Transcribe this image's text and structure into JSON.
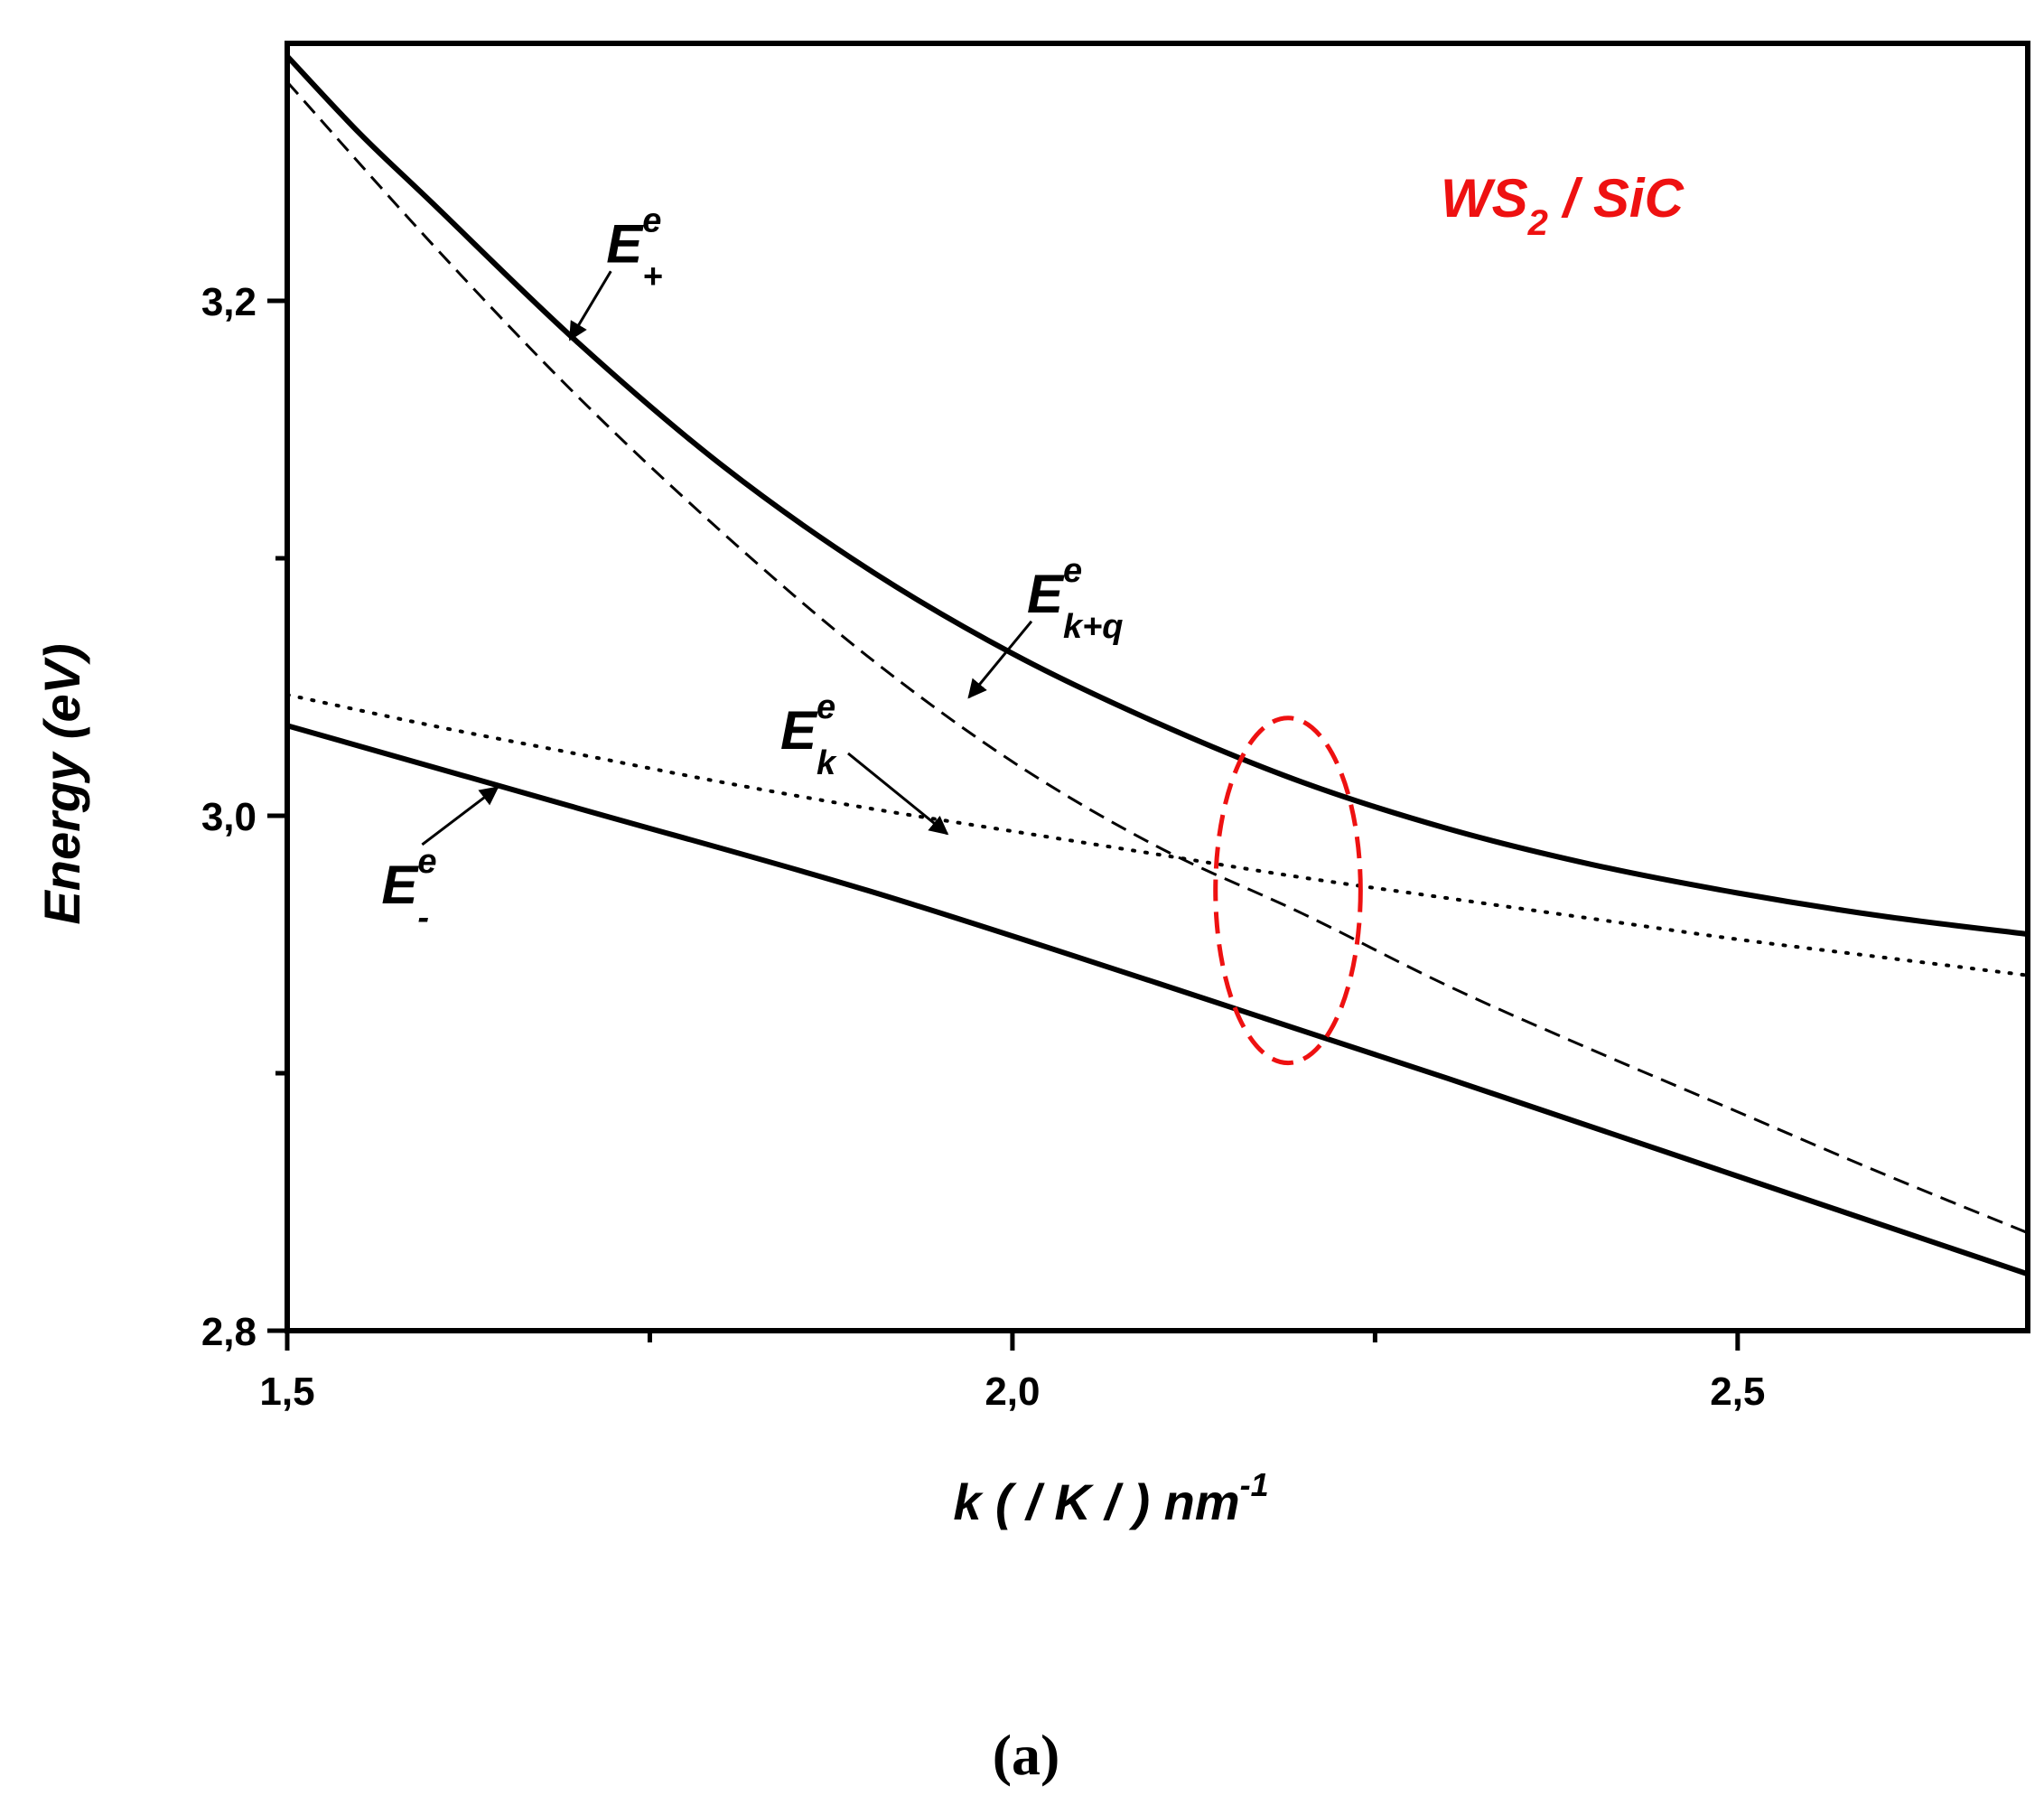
{
  "chart_data": {
    "type": "line",
    "xlabel": "k ( / K / ) nm",
    "xlabel_sup": "-1",
    "ylabel": "Energy (eV)",
    "xlim": [
      1.5,
      2.7
    ],
    "ylim": [
      2.8,
      3.3
    ],
    "x_ticks": [
      {
        "value": 1.5,
        "label": "1,5"
      },
      {
        "value": 2.0,
        "label": "2,0"
      },
      {
        "value": 2.5,
        "label": "2,5"
      }
    ],
    "x_minor_ticks": [
      1.75,
      2.25
    ],
    "y_ticks": [
      {
        "value": 2.8,
        "label": "2,8"
      },
      {
        "value": 3.0,
        "label": "3,0"
      },
      {
        "value": 3.2,
        "label": "3,2"
      }
    ],
    "y_minor_ticks": [
      2.9,
      3.1
    ],
    "grid": false,
    "inset_label": {
      "main": "WS",
      "sub": "2",
      "rest": " / SiC",
      "color": "#ee1111"
    },
    "panel_label": "(a)",
    "highlight_ellipse": {
      "cx": 2.19,
      "cy": 2.971,
      "rx": 0.05,
      "ry": 0.067,
      "color": "#ee1111"
    },
    "series": [
      {
        "key": "E_plus",
        "style": "solid",
        "x": [
          1.5,
          1.55,
          1.6,
          1.7,
          1.8,
          1.9,
          2.0,
          2.1,
          2.2,
          2.3,
          2.4,
          2.5,
          2.6,
          2.7
        ],
        "y": [
          3.295,
          3.265,
          3.238,
          3.184,
          3.136,
          3.096,
          3.063,
          3.036,
          3.013,
          2.995,
          2.981,
          2.97,
          2.961,
          2.954
        ]
      },
      {
        "key": "E_kq",
        "style": "dashed",
        "x": [
          1.5,
          1.6,
          1.7,
          1.8,
          1.9,
          2.0,
          2.1,
          2.2,
          2.3,
          2.4,
          2.5,
          2.6,
          2.7
        ],
        "y": [
          3.285,
          3.222,
          3.163,
          3.11,
          3.062,
          3.021,
          2.988,
          2.962,
          2.934,
          2.909,
          2.885,
          2.861,
          2.838
        ]
      },
      {
        "key": "E_k",
        "style": "dotted",
        "x": [
          1.5,
          1.6,
          1.7,
          1.8,
          1.9,
          2.0,
          2.1,
          2.2,
          2.3,
          2.4,
          2.5,
          2.6,
          2.7
        ],
        "y": [
          3.047,
          3.035,
          3.024,
          3.013,
          3.003,
          2.994,
          2.985,
          2.976,
          2.968,
          2.96,
          2.952,
          2.945,
          2.938
        ]
      },
      {
        "key": "E_minus",
        "style": "solid",
        "x": [
          1.5,
          1.7,
          1.9,
          2.1,
          2.3,
          2.5,
          2.7
        ],
        "y": [
          3.035,
          3.003,
          2.971,
          2.935,
          2.898,
          2.86,
          2.822
        ]
      }
    ],
    "annotations": [
      {
        "key": "E_plus",
        "main": "E",
        "sup": "e",
        "sub": "+",
        "text_x": 1.72,
        "text_y": 3.215,
        "arrow_to_x": 1.695,
        "arrow_to_y": 3.185
      },
      {
        "key": "E_kq",
        "main": "E",
        "sup": "e",
        "sub": "k+q",
        "text_x": 2.01,
        "text_y": 3.079,
        "arrow_to_x": 1.97,
        "arrow_to_y": 3.046
      },
      {
        "key": "E_k",
        "main": "E",
        "sup": "e",
        "sub": "k",
        "text_x": 1.84,
        "text_y": 3.026,
        "arrow_to_x": 1.955,
        "arrow_to_y": 2.993
      },
      {
        "key": "E_minus",
        "main": "E",
        "sup": "e",
        "sub": "-",
        "text_x": 1.565,
        "text_y": 2.966,
        "arrow_to_x": 1.645,
        "arrow_to_y": 3.011
      }
    ]
  }
}
